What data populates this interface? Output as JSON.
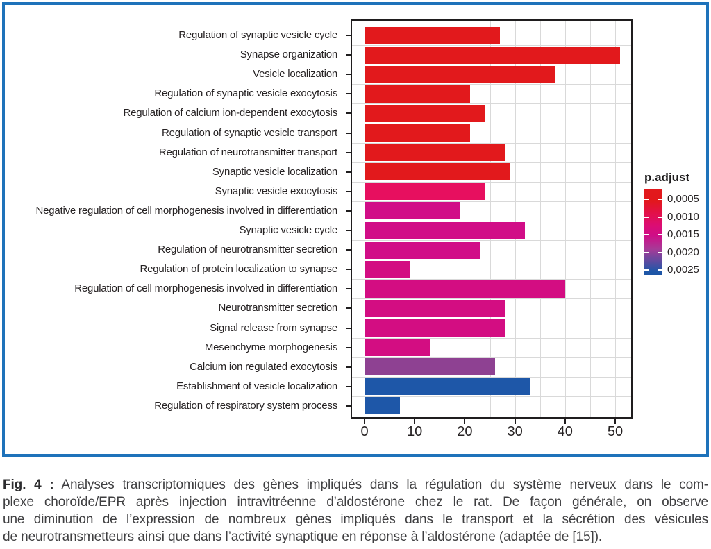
{
  "chart_data": {
    "type": "bar",
    "orientation": "horizontal",
    "title": "",
    "xlabel": "",
    "ylabel": "",
    "xlim": [
      0,
      53.5
    ],
    "xticks": [
      0,
      10,
      20,
      30,
      40,
      50
    ],
    "grid": "light gray lines every 5 units vertically and at category boundaries horizontally",
    "categories": [
      "Regulation of synaptic vesicle cycle",
      "Synapse organization",
      "Vesicle localization",
      "Regulation of synaptic vesicle exocytosis",
      "Regulation of calcium ion-dependent exocytosis",
      "Regulation of synaptic vesicle transport",
      "Regulation of neurotransmitter transport",
      "Synaptic vesicle localization",
      "Synaptic vesicle exocytosis",
      "Negative regulation of cell morphogenesis involved in differentiation",
      "Synaptic vesicle cycle",
      "Regulation of neurotransmitter secretion",
      "Regulation of protein localization to synapse",
      "Regulation of cell morphogenesis involved in differentiation",
      "Neurotransmitter secretion",
      "Signal release from synapse",
      "Mesenchyme morphogenesis",
      "Calcium ion regulated exocytosis",
      "Establishment of vesicle localization",
      "Regulation of respiratory system process"
    ],
    "values": [
      27,
      51,
      38,
      21,
      24,
      21,
      28,
      29,
      24,
      19,
      32,
      23,
      9,
      40,
      28,
      28,
      13,
      26,
      33,
      7
    ],
    "bar_colors": [
      "#e2191c",
      "#e2191c",
      "#e2191c",
      "#e2191c",
      "#e2191c",
      "#e2191c",
      "#e2191c",
      "#e2191c",
      "#e70f5f",
      "#d10d87",
      "#d10d87",
      "#d10d87",
      "#d30d82",
      "#d30d82",
      "#d30d82",
      "#d30d82",
      "#d30d82",
      "#8e4192",
      "#1e57a8",
      "#1e57a8"
    ],
    "legend": {
      "title": "p.adjust",
      "position": "right",
      "tick_labels": [
        "0,0005",
        "0,0010",
        "0,0015",
        "0,0020",
        "0,0025"
      ],
      "gradient_top_to_bottom": [
        "#e2191c",
        "#e31048",
        "#cf0d87",
        "#8e4192",
        "#1e57a8"
      ]
    }
  },
  "frame": {
    "border_color": "#1e72ba"
  },
  "caption": {
    "fig_label": "Fig. 4 :",
    "lines": [
      "Analyses transcriptomiques des gènes impliqués dans la régulation du système nerveux dans le com-",
      "plexe choroïde/EPR après injection intravitréenne d’aldostérone chez le rat. De façon générale, on observe",
      "une diminution de l’expression de nombreux gènes impliqués dans le transport et la sécrétion des vésicules",
      "de neurotransmetteurs ainsi que dans l’activité synaptique en réponse à l’aldostérone (adaptée de [15])."
    ]
  }
}
